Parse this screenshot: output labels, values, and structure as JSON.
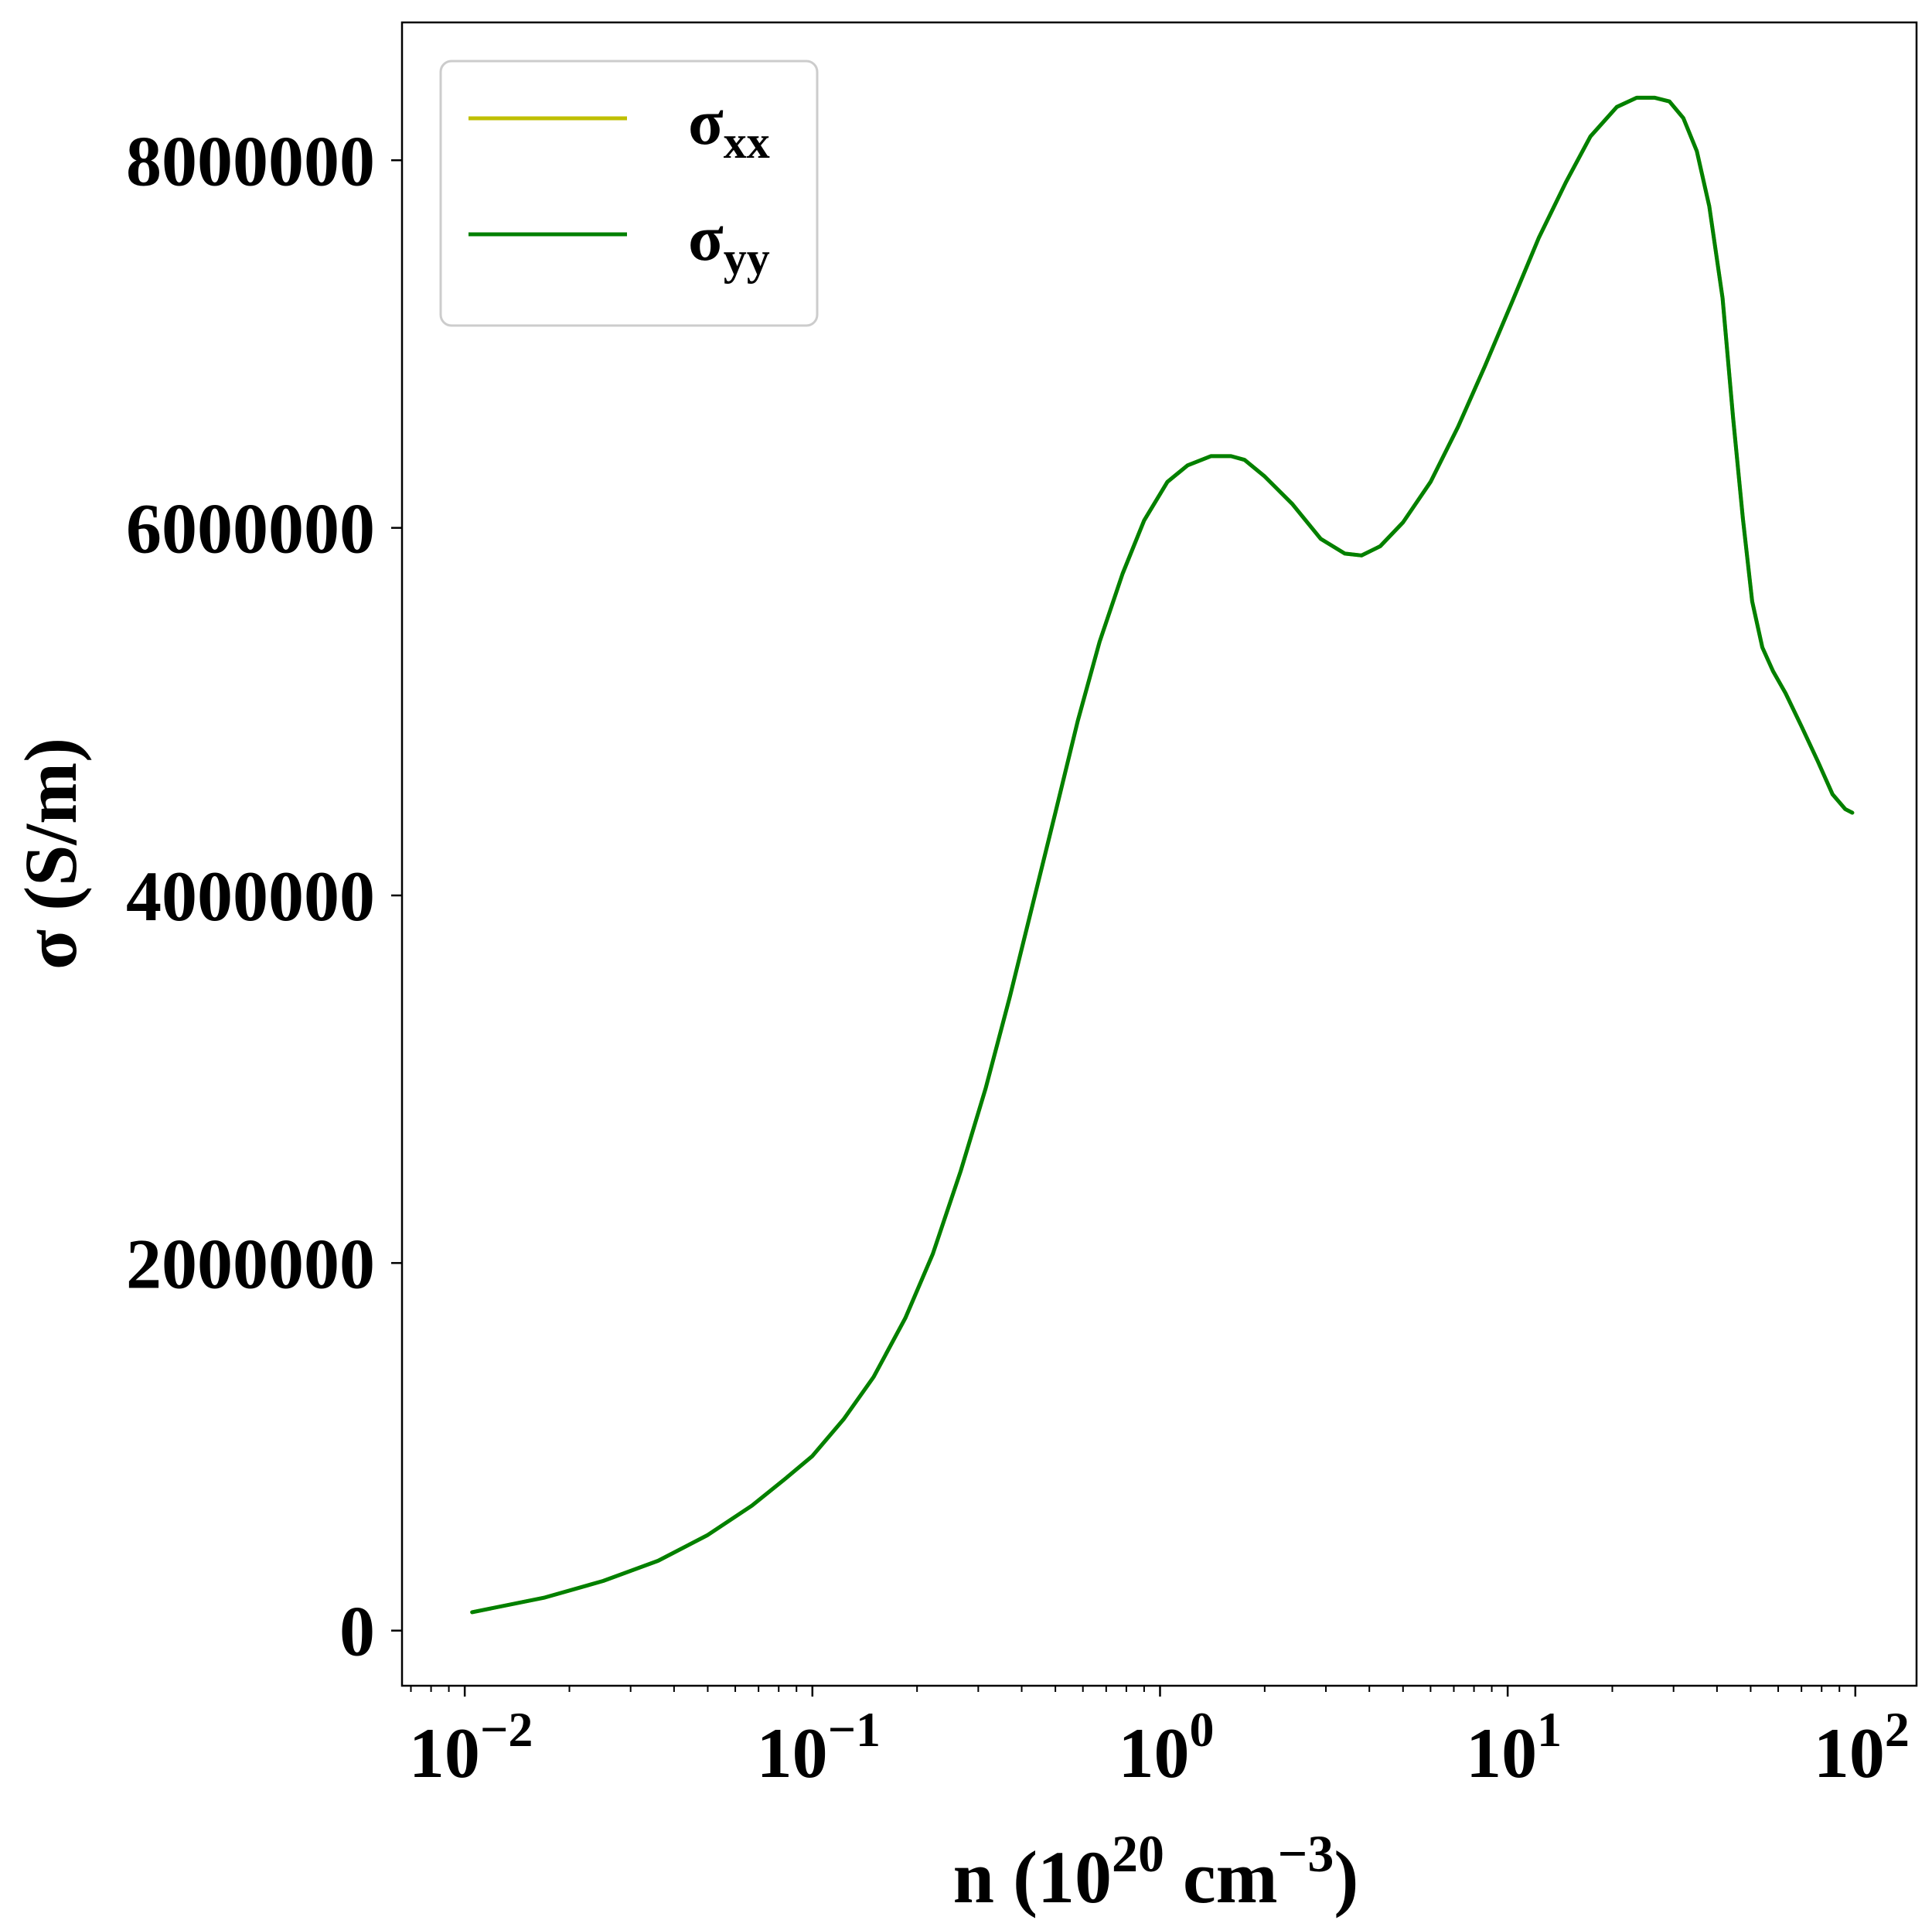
{
  "chart_data": {
    "type": "line",
    "xscale": "log",
    "xlim": [
      0.0066,
      150
    ],
    "ylim": [
      -300000,
      8750000
    ],
    "xlabel": {
      "base": "n (10",
      "exp1": "20",
      "mid": " cm",
      "exp2": "−3",
      "close": ")"
    },
    "ylabel": "σ (S/m)",
    "x_ticks": [
      {
        "value": 0.01,
        "base": "10",
        "exp": "−2"
      },
      {
        "value": 0.1,
        "base": "10",
        "exp": "−1"
      },
      {
        "value": 1,
        "base": "10",
        "exp": "0"
      },
      {
        "value": 10,
        "base": "10",
        "exp": "1"
      },
      {
        "value": 100,
        "base": "10",
        "exp": "2"
      }
    ],
    "y_ticks": [
      {
        "value": 0,
        "label": "0"
      },
      {
        "value": 2000000,
        "label": "2000000"
      },
      {
        "value": 4000000,
        "label": "4000000"
      },
      {
        "value": 6000000,
        "label": "6000000"
      },
      {
        "value": 8000000,
        "label": "8000000"
      }
    ],
    "legend_position": "top-left",
    "grid": false,
    "series": [
      {
        "name": "σ",
        "sub": "xx",
        "color": "#bfbf00",
        "x": [
          0.0105,
          0.017,
          0.025,
          0.036,
          0.05,
          0.067,
          0.084,
          0.1,
          0.123,
          0.15,
          0.185,
          0.222,
          0.267,
          0.315,
          0.37,
          0.43,
          0.5,
          0.58,
          0.67,
          0.78,
          0.9,
          1.05,
          1.2,
          1.4,
          1.6,
          1.75,
          2.0,
          2.4,
          2.9,
          3.4,
          3.8,
          4.3,
          5.0,
          6.0,
          7.2,
          8.6,
          10.3,
          12.3,
          14.7,
          17.3,
          20.6,
          23.5,
          26.5,
          29.2,
          32.0,
          35.0,
          38.0,
          41.5,
          44.5,
          47.5,
          50.5,
          54.0,
          58.0,
          63.0,
          70.0,
          78.0,
          86.0,
          93.5,
          98.0
        ],
        "y": [
          100000,
          180000,
          270000,
          380000,
          520000,
          680000,
          830000,
          950000,
          1150000,
          1380000,
          1700000,
          2050000,
          2500000,
          2950000,
          3450000,
          3950000,
          4450000,
          4950000,
          5380000,
          5750000,
          6040000,
          6250000,
          6340000,
          6390000,
          6390000,
          6370000,
          6280000,
          6130000,
          5940000,
          5860000,
          5850000,
          5900000,
          6030000,
          6250000,
          6550000,
          6880000,
          7230000,
          7580000,
          7880000,
          8130000,
          8290000,
          8340000,
          8340000,
          8320000,
          8230000,
          8050000,
          7750000,
          7250000,
          6600000,
          6050000,
          5600000,
          5350000,
          5220000,
          5100000,
          4920000,
          4730000,
          4550000,
          4470000,
          4450000
        ]
      },
      {
        "name": "σ",
        "sub": "yy",
        "color": "#008000",
        "x": [
          0.0105,
          0.017,
          0.025,
          0.036,
          0.05,
          0.067,
          0.084,
          0.1,
          0.123,
          0.15,
          0.185,
          0.222,
          0.267,
          0.315,
          0.37,
          0.43,
          0.5,
          0.58,
          0.67,
          0.78,
          0.9,
          1.05,
          1.2,
          1.4,
          1.6,
          1.75,
          2.0,
          2.4,
          2.9,
          3.4,
          3.8,
          4.3,
          5.0,
          6.0,
          7.2,
          8.6,
          10.3,
          12.3,
          14.7,
          17.3,
          20.6,
          23.5,
          26.5,
          29.2,
          32.0,
          35.0,
          38.0,
          41.5,
          44.5,
          47.5,
          50.5,
          54.0,
          58.0,
          63.0,
          70.0,
          78.0,
          86.0,
          93.5,
          98.0
        ],
        "y": [
          100000,
          180000,
          270000,
          380000,
          520000,
          680000,
          830000,
          950000,
          1150000,
          1380000,
          1700000,
          2050000,
          2500000,
          2950000,
          3450000,
          3950000,
          4450000,
          4950000,
          5380000,
          5750000,
          6040000,
          6250000,
          6340000,
          6390000,
          6390000,
          6370000,
          6280000,
          6130000,
          5940000,
          5860000,
          5850000,
          5900000,
          6030000,
          6250000,
          6550000,
          6880000,
          7230000,
          7580000,
          7880000,
          8130000,
          8290000,
          8340000,
          8340000,
          8320000,
          8230000,
          8050000,
          7750000,
          7250000,
          6600000,
          6050000,
          5600000,
          5350000,
          5220000,
          5100000,
          4920000,
          4730000,
          4550000,
          4470000,
          4450000
        ]
      }
    ]
  }
}
